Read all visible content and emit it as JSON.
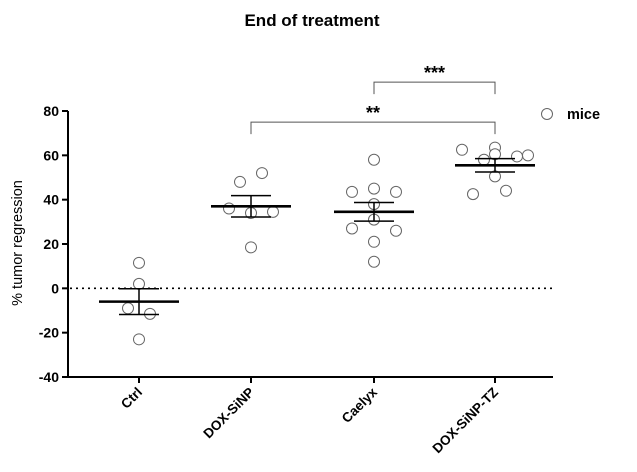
{
  "chart_data": {
    "type": "scatter",
    "title": "End of treatment",
    "ylabel": "% tumor regression",
    "xlabel": "",
    "ylim": [
      -40,
      80
    ],
    "yticks": [
      -40,
      -20,
      0,
      20,
      40,
      60,
      80
    ],
    "categories": [
      "Ctrl",
      "DOX-SiNP",
      "Caelyx",
      "DOX-SiNP-TZ"
    ],
    "series": [
      {
        "name": "mice",
        "marker": "open-circle",
        "groups": [
          {
            "category": "Ctrl",
            "points": [
              {
                "dx": 0,
                "y": 11.5
              },
              {
                "dx": 0,
                "y": 2
              },
              {
                "dx": -1,
                "y": -9
              },
              {
                "dx": 1,
                "y": -11.5
              },
              {
                "dx": 0,
                "y": -23
              }
            ]
          },
          {
            "category": "DOX-SiNP",
            "points": [
              {
                "dx": 1,
                "y": 52
              },
              {
                "dx": -1,
                "y": 48
              },
              {
                "dx": -2,
                "y": 36
              },
              {
                "dx": 0,
                "y": 34
              },
              {
                "dx": 2,
                "y": 34.5
              },
              {
                "dx": 0,
                "y": 18.5
              }
            ]
          },
          {
            "category": "Caelyx",
            "points": [
              {
                "dx": 0,
                "y": 58
              },
              {
                "dx": -2,
                "y": 43.5
              },
              {
                "dx": 0,
                "y": 45
              },
              {
                "dx": 2,
                "y": 43.5
              },
              {
                "dx": 0,
                "y": 38
              },
              {
                "dx": 0,
                "y": 31
              },
              {
                "dx": -2,
                "y": 27
              },
              {
                "dx": 2,
                "y": 26
              },
              {
                "dx": 0,
                "y": 21
              },
              {
                "dx": 0,
                "y": 12
              }
            ]
          },
          {
            "category": "DOX-SiNP-TZ",
            "points": [
              {
                "dx": 0,
                "y": 63.5
              },
              {
                "dx": -3,
                "y": 62.5
              },
              {
                "dx": 0,
                "y": 60.5
              },
              {
                "dx": 2,
                "y": 59.5
              },
              {
                "dx": 3,
                "y": 60
              },
              {
                "dx": -1,
                "y": 58
              },
              {
                "dx": 0,
                "y": 50.5
              },
              {
                "dx": 1,
                "y": 44
              },
              {
                "dx": -2,
                "y": 42.5
              }
            ]
          }
        ]
      }
    ],
    "summary": [
      {
        "category": "Ctrl",
        "mean": -6,
        "sem": 5.8
      },
      {
        "category": "DOX-SiNP",
        "mean": 37,
        "sem": 4.8
      },
      {
        "category": "Caelyx",
        "mean": 34.5,
        "sem": 4.2
      },
      {
        "category": "DOX-SiNP-TZ",
        "mean": 55.5,
        "sem": 3
      },
      null
    ],
    "reference_line": {
      "y": 0,
      "style": "dotted"
    },
    "significance": [
      {
        "from": "DOX-SiNP",
        "to": "DOX-SiNP-TZ",
        "label": "**",
        "y": 75
      },
      {
        "from": "Caelyx",
        "to": "DOX-SiNP-TZ",
        "label": "***",
        "y": 93
      }
    ],
    "legend": {
      "label": "mice",
      "position": "top-right"
    },
    "grid": false
  }
}
